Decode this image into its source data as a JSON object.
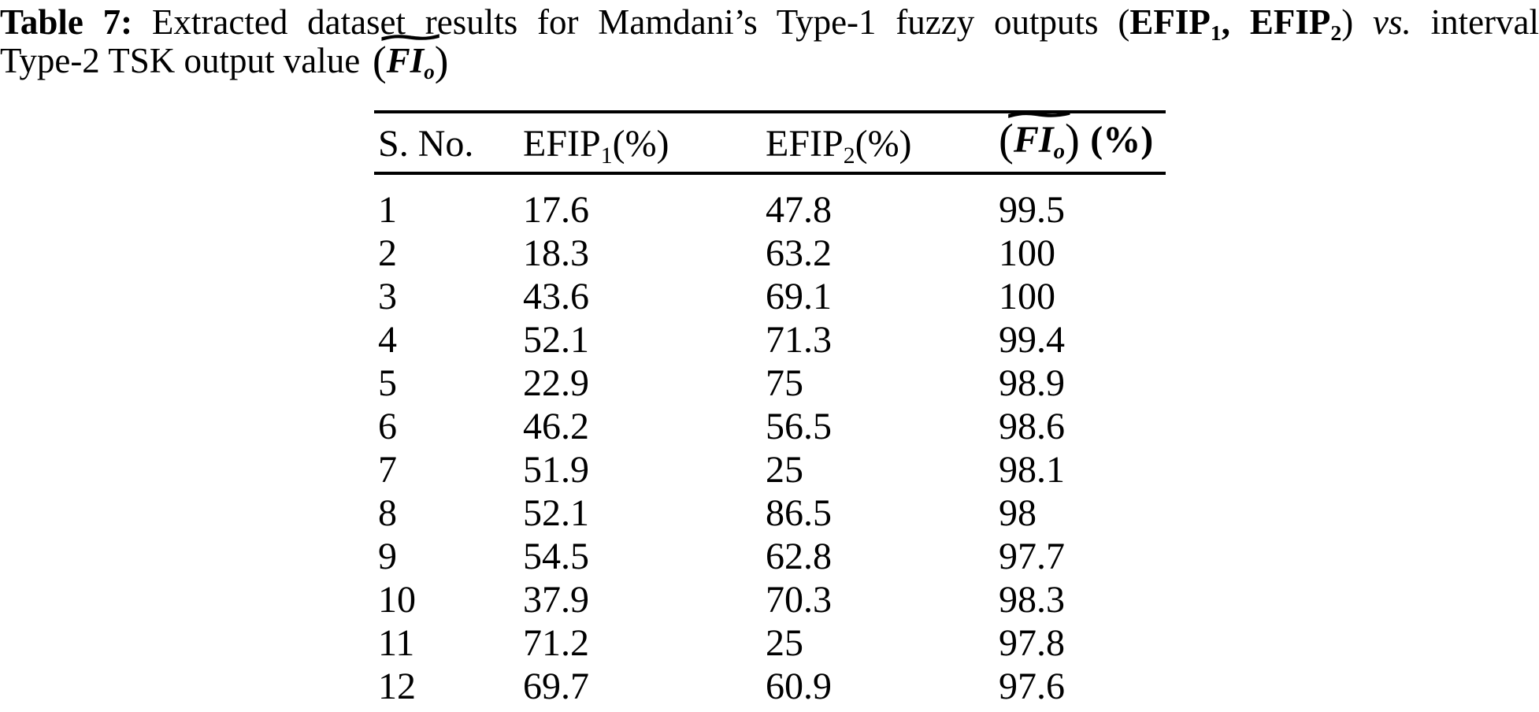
{
  "page": {
    "background": "#ffffff",
    "text_color": "#000000"
  },
  "caption": {
    "label": "Table 7:",
    "body_before": " Extracted dataset results for Mamdani’s Type-1 fuzzy outputs ",
    "paren_open": "(",
    "efip_base": "EFIP",
    "efip1_sub": "1",
    "efip_separator": ", ",
    "efip2_sub": "2",
    "paren_close": ") ",
    "vs": "vs.",
    "line1_tail": " interval",
    "line2_lead": "Type-2 TSK output value",
    "math_paren_open": "(",
    "math_tilde": "∼",
    "math_letters": "FI",
    "math_sub": "o",
    "math_paren_close": ")"
  },
  "table": {
    "header": {
      "col_serial": "S. No.",
      "efip_base": "EFIP",
      "efip1_sub": "1",
      "efip2_sub": "2",
      "percent_suffix": "(%)",
      "math_paren_open": "(",
      "math_tilde": "∼",
      "math_letters": "FI",
      "math_sub": "o",
      "math_paren_close": ")",
      "percent_suffix_bold": "(%)"
    },
    "rows": [
      [
        "1",
        "17.6",
        "47.8",
        "99.5"
      ],
      [
        "2",
        "18.3",
        "63.2",
        "100"
      ],
      [
        "3",
        "43.6",
        "69.1",
        "100"
      ],
      [
        "4",
        "52.1",
        "71.3",
        "99.4"
      ],
      [
        "5",
        "22.9",
        "75",
        "98.9"
      ],
      [
        "6",
        "46.2",
        "56.5",
        "98.6"
      ],
      [
        "7",
        "51.9",
        "25",
        "98.1"
      ],
      [
        "8",
        "52.1",
        "86.5",
        "98"
      ],
      [
        "9",
        "54.5",
        "62.8",
        "97.7"
      ],
      [
        "10",
        "37.9",
        "70.3",
        "98.3"
      ],
      [
        "11",
        "71.2",
        "25",
        "97.8"
      ],
      [
        "12",
        "69.7",
        "60.9",
        "97.6"
      ]
    ]
  }
}
